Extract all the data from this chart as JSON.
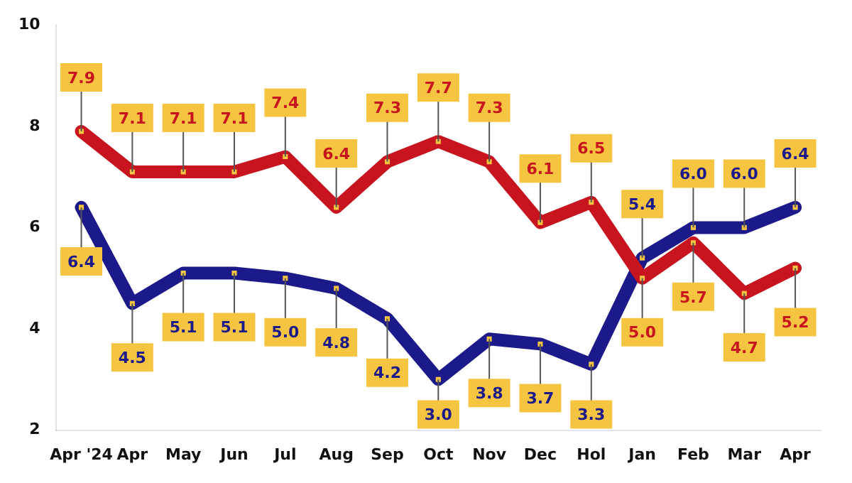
{
  "chart_data": {
    "type": "line",
    "categories": [
      "Apr '24",
      "Apr",
      "May",
      "Jun",
      "Jul",
      "Aug",
      "Sep",
      "Oct",
      "Nov",
      "Dec",
      "Hol",
      "Jan",
      "Feb",
      "Mar",
      "Apr"
    ],
    "series": [
      {
        "color": "#c8141e",
        "values": [
          7.9,
          7.1,
          7.1,
          7.1,
          7.4,
          6.4,
          7.3,
          7.7,
          7.3,
          6.1,
          6.5,
          5.0,
          5.7,
          4.7,
          5.2
        ],
        "value_labels": [
          "7.9",
          "7.1",
          "7.1",
          "7.1",
          "7.4",
          "6.4",
          "7.3",
          "7.7",
          "7.3",
          "6.1",
          "6.5",
          "5.0",
          "5.7",
          "4.7",
          "5.2"
        ]
      },
      {
        "color": "#1c1a8a",
        "values": [
          6.4,
          4.5,
          5.1,
          5.1,
          5.0,
          4.8,
          4.2,
          3.0,
          3.8,
          3.7,
          3.3,
          5.4,
          6.0,
          6.0,
          6.4
        ],
        "value_labels": [
          "6.4",
          "4.5",
          "5.1",
          "5.1",
          "5.0",
          "4.8",
          "4.2",
          "3.0",
          "3.8",
          "3.7",
          "3.3",
          "5.4",
          "6.0",
          "6.0",
          "6.4"
        ]
      }
    ],
    "ylim": [
      2,
      10
    ],
    "yticks": [
      2,
      4,
      6,
      8,
      10
    ],
    "grid": false,
    "legend": false,
    "marker": "square",
    "line_style": "solid"
  }
}
